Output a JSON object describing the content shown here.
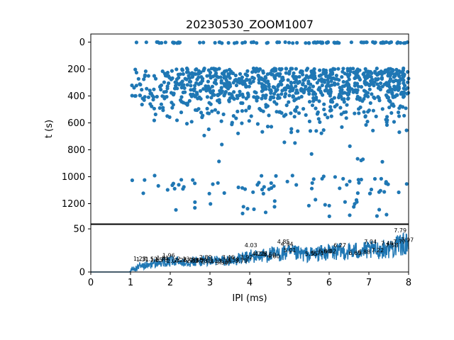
{
  "chart_data": [
    {
      "type": "scatter",
      "title": "20230530_ZOOM1007",
      "ylabel": "t (s)",
      "xlim": [
        0,
        8
      ],
      "ylim": [
        1350,
        -60
      ],
      "y_inverted": true,
      "yticks": [
        "0",
        "200",
        "400",
        "600",
        "800",
        "1000",
        "1200"
      ],
      "color": "#1f77b4",
      "bands": [
        {
          "t_min": 0,
          "t_max": 8,
          "x_min": 1.02,
          "x_max": 8.0,
          "count": 90
        },
        {
          "t_min": 195,
          "t_max": 260,
          "x_min": 1.02,
          "x_max": 8.0,
          "count": 260
        },
        {
          "t_min": 260,
          "t_max": 420,
          "x_min": 1.02,
          "x_max": 8.0,
          "count": 520
        },
        {
          "t_min": 420,
          "t_max": 560,
          "x_min": 1.1,
          "x_max": 8.0,
          "count": 150
        },
        {
          "t_min": 560,
          "t_max": 700,
          "x_min": 1.2,
          "x_max": 8.0,
          "count": 40
        },
        {
          "t_min": 700,
          "t_max": 900,
          "x_min": 1.5,
          "x_max": 8.0,
          "count": 10
        },
        {
          "t_min": 990,
          "t_max": 1130,
          "x_min": 1.0,
          "x_max": 8.0,
          "count": 65
        },
        {
          "t_min": 1170,
          "t_max": 1300,
          "x_min": 1.5,
          "x_max": 8.0,
          "count": 25
        }
      ]
    },
    {
      "type": "line",
      "xlabel": "IPI (ms)",
      "xlim": [
        0,
        8
      ],
      "ylim": [
        0,
        55
      ],
      "xticks": [
        "0",
        "1",
        "2",
        "3",
        "4",
        "5",
        "6",
        "7",
        "8"
      ],
      "yticks": [
        "0",
        "50"
      ],
      "color": "#1f77b4",
      "trend": [
        [
          0,
          0
        ],
        [
          0.98,
          0
        ],
        [
          1.02,
          3
        ],
        [
          1.5,
          9
        ],
        [
          2.0,
          12
        ],
        [
          2.5,
          12
        ],
        [
          3.0,
          13
        ],
        [
          3.5,
          13
        ],
        [
          4.0,
          17
        ],
        [
          4.5,
          20
        ],
        [
          5.0,
          22
        ],
        [
          5.5,
          20
        ],
        [
          6.0,
          23
        ],
        [
          6.5,
          24
        ],
        [
          7.0,
          25
        ],
        [
          7.5,
          27
        ],
        [
          8.0,
          34
        ]
      ],
      "annotations": [
        {
          "x": 1.23,
          "y": 12.5,
          "text": "1.23"
        },
        {
          "x": 1.3,
          "y": 11.5,
          "text": "1.31"
        },
        {
          "x": 1.52,
          "y": 12,
          "text": "1.52"
        },
        {
          "x": 1.65,
          "y": 11,
          "text": "1.65"
        },
        {
          "x": 1.78,
          "y": 11,
          "text": "1.78"
        },
        {
          "x": 1.81,
          "y": 13,
          "text": "1.81"
        },
        {
          "x": 1.96,
          "y": 16,
          "text": "1.96"
        },
        {
          "x": 2.07,
          "y": 10,
          "text": "2.07"
        },
        {
          "x": 2.26,
          "y": 10.5,
          "text": "2.26"
        },
        {
          "x": 2.33,
          "y": 12,
          "text": "2.33"
        },
        {
          "x": 2.48,
          "y": 11,
          "text": "2.48"
        },
        {
          "x": 2.57,
          "y": 10,
          "text": "2.57"
        },
        {
          "x": 2.66,
          "y": 10.5,
          "text": "2.66"
        },
        {
          "x": 2.78,
          "y": 10,
          "text": "2.78"
        },
        {
          "x": 2.89,
          "y": 14,
          "text": "2.89"
        },
        {
          "x": 2.93,
          "y": 9.5,
          "text": "2.93"
        },
        {
          "x": 3.13,
          "y": 10,
          "text": "3.13"
        },
        {
          "x": 3.3,
          "y": 8,
          "text": "3.30"
        },
        {
          "x": 3.38,
          "y": 9,
          "text": "3.38"
        },
        {
          "x": 3.46,
          "y": 14,
          "text": "3.46"
        },
        {
          "x": 3.58,
          "y": 11,
          "text": "3.58"
        },
        {
          "x": 3.79,
          "y": 10,
          "text": "3.79"
        },
        {
          "x": 3.92,
          "y": 14,
          "text": "3.92"
        },
        {
          "x": 4.03,
          "y": 28,
          "text": "4.03"
        },
        {
          "x": 4.22,
          "y": 18,
          "text": "4.22"
        },
        {
          "x": 4.28,
          "y": 18,
          "text": "4.28"
        },
        {
          "x": 4.5,
          "y": 17,
          "text": "4.50"
        },
        {
          "x": 4.6,
          "y": 15,
          "text": "4.60"
        },
        {
          "x": 4.85,
          "y": 32,
          "text": "4.85"
        },
        {
          "x": 4.94,
          "y": 29,
          "text": "4.94"
        },
        {
          "x": 5.01,
          "y": 22,
          "text": "5.01"
        },
        {
          "x": 5.55,
          "y": 18,
          "text": "5.55"
        },
        {
          "x": 5.71,
          "y": 19,
          "text": "5.71"
        },
        {
          "x": 5.9,
          "y": 21,
          "text": "5.90"
        },
        {
          "x": 6.02,
          "y": 21,
          "text": "6.02"
        },
        {
          "x": 6.27,
          "y": 28,
          "text": "6.27"
        },
        {
          "x": 6.65,
          "y": 19,
          "text": "6.65"
        },
        {
          "x": 6.88,
          "y": 20,
          "text": "6.88"
        },
        {
          "x": 7.04,
          "y": 32,
          "text": "7.04"
        },
        {
          "x": 7.22,
          "y": 22,
          "text": "7.22"
        },
        {
          "x": 7.46,
          "y": 30,
          "text": "7.46"
        },
        {
          "x": 7.58,
          "y": 28,
          "text": "7.58"
        },
        {
          "x": 7.77,
          "y": 32,
          "text": "7.77"
        },
        {
          "x": 7.79,
          "y": 45,
          "text": "7.79"
        },
        {
          "x": 7.97,
          "y": 34,
          "text": "7.97"
        }
      ]
    }
  ]
}
